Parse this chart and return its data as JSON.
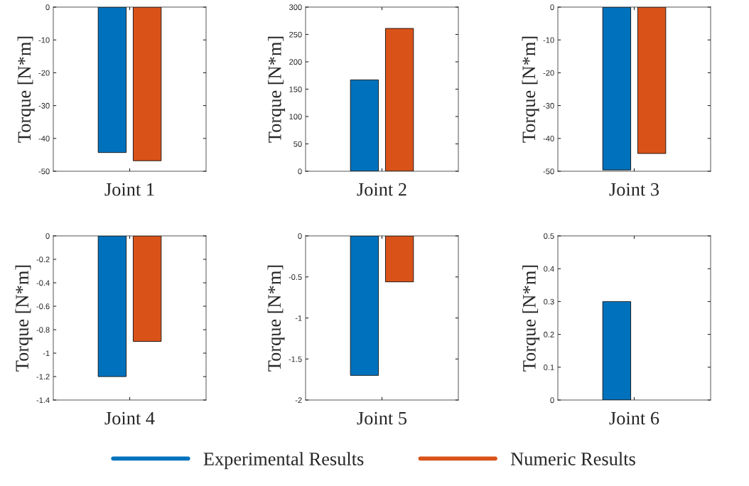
{
  "chart_data": [
    {
      "type": "bar",
      "categories": [
        null
      ],
      "xlabel": "Joint 1",
      "ylabel": "Torque [N*m]",
      "ylim": [
        -50,
        0
      ],
      "yticks": [
        -50,
        -40,
        -30,
        -20,
        -10,
        0
      ],
      "legend": "bottom",
      "series": [
        {
          "name": "Experimental Results",
          "color": "#0072bd",
          "values": [
            -44.3
          ]
        },
        {
          "name": "Numeric Results",
          "color": "#d95319",
          "values": [
            -46.8
          ]
        }
      ]
    },
    {
      "type": "bar",
      "categories": [
        null
      ],
      "xlabel": "Joint 2",
      "ylabel": "Torque [N*m]",
      "ylim": [
        0,
        300
      ],
      "yticks": [
        0,
        50,
        100,
        150,
        200,
        250,
        300
      ],
      "series": [
        {
          "color": "#0072bd",
          "values": [
            167
          ]
        },
        {
          "color": "#d95319",
          "values": [
            261
          ]
        }
      ]
    },
    {
      "type": "bar",
      "categories": [
        null
      ],
      "xlabel": "Joint 3",
      "ylabel": "Torque [N*m]",
      "ylim": [
        -50,
        0
      ],
      "yticks": [
        -50,
        -40,
        -30,
        -20,
        -10,
        0
      ],
      "series": [
        {
          "color": "#0072bd",
          "values": [
            -49.6
          ]
        },
        {
          "color": "#d95319",
          "values": [
            -44.6
          ]
        }
      ]
    },
    {
      "type": "bar",
      "categories": [
        null
      ],
      "xlabel": "Joint 4",
      "ylabel": "Torque [N*m]",
      "ylim": [
        -1.4,
        0
      ],
      "yticks": [
        -1.4,
        -1.2,
        -1,
        -0.8,
        -0.6,
        -0.4,
        -0.2,
        0
      ],
      "series": [
        {
          "color": "#0072bd",
          "values": [
            -1.2
          ]
        },
        {
          "color": "#d95319",
          "values": [
            -0.9
          ]
        }
      ]
    },
    {
      "type": "bar",
      "categories": [
        null
      ],
      "xlabel": "Joint 5",
      "ylabel": "Torque [N*m]",
      "ylim": [
        -2,
        0
      ],
      "yticks": [
        -2,
        -1.5,
        -1,
        -0.5,
        0
      ],
      "series": [
        {
          "color": "#0072bd",
          "values": [
            -1.7
          ]
        },
        {
          "color": "#d95319",
          "values": [
            -0.56
          ]
        }
      ]
    },
    {
      "type": "bar",
      "categories": [
        null
      ],
      "xlabel": "Joint 6",
      "ylabel": "Torque [N*m]",
      "ylim": [
        0,
        0.5
      ],
      "yticks": [
        0,
        0.1,
        0.2,
        0.3,
        0.4,
        0.5
      ],
      "series": [
        {
          "color": "#0072bd",
          "values": [
            0.3
          ]
        },
        {
          "color": "#d95319",
          "values": [
            null
          ]
        }
      ]
    }
  ]
}
